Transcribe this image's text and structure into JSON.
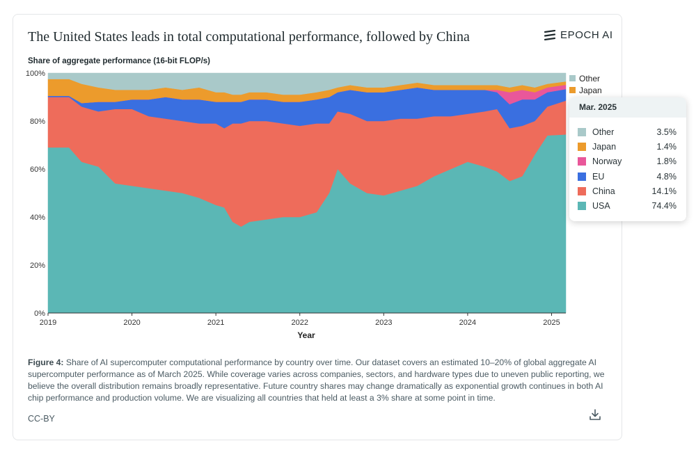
{
  "header": {
    "title": "The United States leads in total computational performance, followed by China",
    "brand": "EPOCH AI"
  },
  "caption": {
    "label": "Figure 4:",
    "text": " Share of AI supercomputer computational performance by country over time. Our dataset covers an estimated 10–20% of global aggregate AI supercomputer performance as of March 2025. While coverage varies across companies, sectors, and hardware types due to uneven public reporting, we believe the overall distribution remains broadly representative. Future country shares may change dramatically as exponential growth continues in both AI chip performance and production volume. We are visualizing all countries that held at least a 3% share at some point in time."
  },
  "license": "CC-BY",
  "icons": {
    "brand": "epoch-logo-icon",
    "download": "download-icon"
  },
  "tooltip": {
    "date": "Mar. 2025",
    "rows": [
      {
        "name": "Other",
        "value": "3.5%",
        "color": "#a9c9c9"
      },
      {
        "name": "Japan",
        "value": "1.4%",
        "color": "#ec9b2c"
      },
      {
        "name": "Norway",
        "value": "1.8%",
        "color": "#e9579a"
      },
      {
        "name": "EU",
        "value": "4.8%",
        "color": "#3a6fe0"
      },
      {
        "name": "China",
        "value": "14.1%",
        "color": "#ee6c5b"
      },
      {
        "name": "USA",
        "value": "74.4%",
        "color": "#5bb7b5"
      }
    ]
  },
  "chart_data": {
    "type": "area",
    "stacked": "percent",
    "subtitle": "Share of aggregate performance (16-bit FLOP/s)",
    "xlabel": "Year",
    "ylabel": "",
    "xlim": [
      2019.0,
      2025.17
    ],
    "ylim": [
      0,
      100
    ],
    "x_ticks": [
      "2019",
      "2020",
      "2021",
      "2022",
      "2023",
      "2024",
      "2025"
    ],
    "y_ticks": [
      "0%",
      "20%",
      "40%",
      "60%",
      "80%",
      "100%"
    ],
    "legend": [
      "Other",
      "Japan"
    ],
    "legend_position": "right",
    "x": [
      2019.0,
      2019.25,
      2019.4,
      2019.6,
      2019.8,
      2020.0,
      2020.2,
      2020.4,
      2020.6,
      2020.8,
      2021.0,
      2021.1,
      2021.2,
      2021.3,
      2021.4,
      2021.6,
      2021.8,
      2022.0,
      2022.2,
      2022.35,
      2022.45,
      2022.6,
      2022.8,
      2023.0,
      2023.2,
      2023.4,
      2023.6,
      2023.8,
      2024.0,
      2024.2,
      2024.35,
      2024.5,
      2024.65,
      2024.8,
      2024.95,
      2025.17
    ],
    "series": [
      {
        "name": "USA",
        "color": "#5bb7b5",
        "values": [
          69,
          69,
          63,
          61,
          54,
          53,
          52,
          51,
          50,
          48,
          45,
          44,
          38,
          36,
          38,
          39,
          40,
          40,
          42,
          50,
          60,
          54,
          50,
          49,
          51,
          53,
          57,
          60,
          63,
          61,
          59,
          55,
          57,
          66,
          74,
          74.4
        ]
      },
      {
        "name": "China",
        "color": "#ee6c5b",
        "values": [
          21,
          21,
          23,
          23,
          31,
          32,
          30,
          30,
          30,
          31,
          34,
          33,
          41,
          43,
          42,
          41,
          39,
          38,
          37,
          29,
          24,
          29,
          30,
          31,
          30,
          28,
          25,
          22,
          20,
          23,
          26,
          22,
          21,
          14,
          12,
          14.1
        ]
      },
      {
        "name": "EU",
        "color": "#3a6fe0",
        "values": [
          0.5,
          0.5,
          1.5,
          4,
          3,
          4,
          7,
          9,
          9,
          10,
          9,
          11,
          9,
          9,
          9,
          9,
          9,
          10,
          10,
          11,
          8,
          10,
          12,
          12,
          12,
          13,
          11,
          11,
          10,
          9,
          7,
          10,
          11,
          9,
          6,
          4.8
        ]
      },
      {
        "name": "Norway",
        "color": "#e9579a",
        "values": [
          0,
          0,
          0,
          0,
          0,
          0,
          0,
          0,
          0,
          0,
          0,
          0,
          0,
          0,
          0,
          0,
          0,
          0,
          0,
          0,
          0,
          0,
          0,
          0,
          0,
          0,
          0,
          0,
          0,
          0,
          1,
          5,
          4,
          3,
          2,
          1.8
        ]
      },
      {
        "name": "Japan",
        "color": "#ec9b2c",
        "values": [
          7,
          7,
          8,
          6,
          5,
          4,
          4,
          4,
          4,
          5,
          4,
          4,
          3,
          3,
          3,
          3,
          3,
          3,
          3,
          3,
          2,
          2,
          2,
          2,
          2,
          2,
          2,
          2,
          2,
          2,
          2,
          2,
          2,
          2,
          1.5,
          1.4
        ]
      },
      {
        "name": "Other",
        "color": "#a9c9c9",
        "values": [
          2.5,
          2.5,
          4.5,
          6,
          7,
          7,
          7,
          6,
          7,
          6,
          8,
          8,
          9,
          9,
          8,
          8,
          9,
          9,
          8,
          7,
          6,
          5,
          6,
          6,
          5,
          4,
          5,
          5,
          5,
          5,
          5,
          6,
          5,
          6,
          4.5,
          3.5
        ]
      }
    ]
  }
}
